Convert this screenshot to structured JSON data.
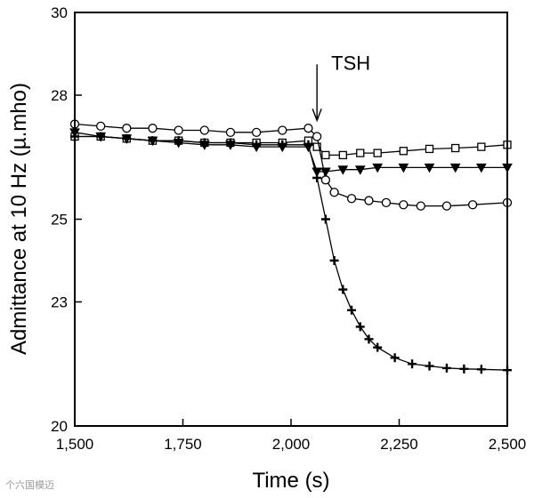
{
  "chart_data": {
    "type": "line",
    "title": "",
    "xlabel": "Time (s)",
    "ylabel": "Admittance at 10 Hz (µ.mho)",
    "xlim": [
      1500,
      2500
    ],
    "ylim": [
      20,
      30
    ],
    "xticks": [
      1500,
      1750,
      2000,
      2250,
      2500
    ],
    "xtick_labels": [
      "1,500",
      "1,750",
      "2,000",
      "2,250",
      "2,500"
    ],
    "yticks": [
      20,
      23,
      25,
      28,
      30
    ],
    "ytick_labels": [
      "20",
      "23",
      "25",
      "28",
      "30"
    ],
    "annotations": [
      {
        "text": "TSH",
        "x": 2060,
        "y": 28.4
      }
    ],
    "series": [
      {
        "name": "squares",
        "marker": "square",
        "x": [
          1500,
          1560,
          1620,
          1680,
          1740,
          1800,
          1860,
          1920,
          1980,
          2040,
          2060,
          2080,
          2120,
          2160,
          2200,
          2260,
          2320,
          2380,
          2440,
          2500
        ],
        "y": [
          27.0,
          27.0,
          26.95,
          26.9,
          26.9,
          26.85,
          26.85,
          26.85,
          26.85,
          26.9,
          26.75,
          26.55,
          26.55,
          26.6,
          26.6,
          26.65,
          26.7,
          26.72,
          26.75,
          26.8
        ]
      },
      {
        "name": "open circles",
        "marker": "circle",
        "x": [
          1500,
          1560,
          1620,
          1680,
          1740,
          1800,
          1860,
          1920,
          1980,
          2040,
          2060,
          2080,
          2100,
          2140,
          2180,
          2220,
          2260,
          2300,
          2360,
          2420,
          2500
        ],
        "y": [
          27.3,
          27.25,
          27.2,
          27.2,
          27.15,
          27.15,
          27.1,
          27.1,
          27.15,
          27.2,
          27.0,
          25.95,
          25.65,
          25.5,
          25.45,
          25.4,
          25.35,
          25.32,
          25.32,
          25.35,
          25.4
        ]
      },
      {
        "name": "filled triangles",
        "marker": "triangle",
        "x": [
          1500,
          1560,
          1620,
          1680,
          1740,
          1800,
          1860,
          1920,
          1980,
          2040,
          2060,
          2080,
          2120,
          2160,
          2200,
          2260,
          2320,
          2380,
          2440,
          2500
        ],
        "y": [
          27.1,
          27.0,
          26.95,
          26.9,
          26.85,
          26.8,
          26.8,
          26.75,
          26.75,
          26.75,
          26.15,
          26.15,
          26.2,
          26.2,
          26.25,
          26.25,
          26.25,
          26.25,
          26.25,
          26.25
        ]
      },
      {
        "name": "crosses",
        "marker": "cross",
        "x": [
          1500,
          1560,
          1620,
          1680,
          1740,
          1800,
          1860,
          1920,
          1980,
          2040,
          2060,
          2080,
          2100,
          2120,
          2140,
          2160,
          2180,
          2200,
          2240,
          2280,
          2320,
          2360,
          2400,
          2440,
          2500
        ],
        "y": [
          27.0,
          27.0,
          26.95,
          26.9,
          26.9,
          26.85,
          26.85,
          26.8,
          26.8,
          26.8,
          26.0,
          25.0,
          24.0,
          23.3,
          22.8,
          22.4,
          22.1,
          21.9,
          21.65,
          21.5,
          21.45,
          21.4,
          21.38,
          21.37,
          21.35
        ]
      }
    ]
  },
  "watermark": "个六国模迈"
}
